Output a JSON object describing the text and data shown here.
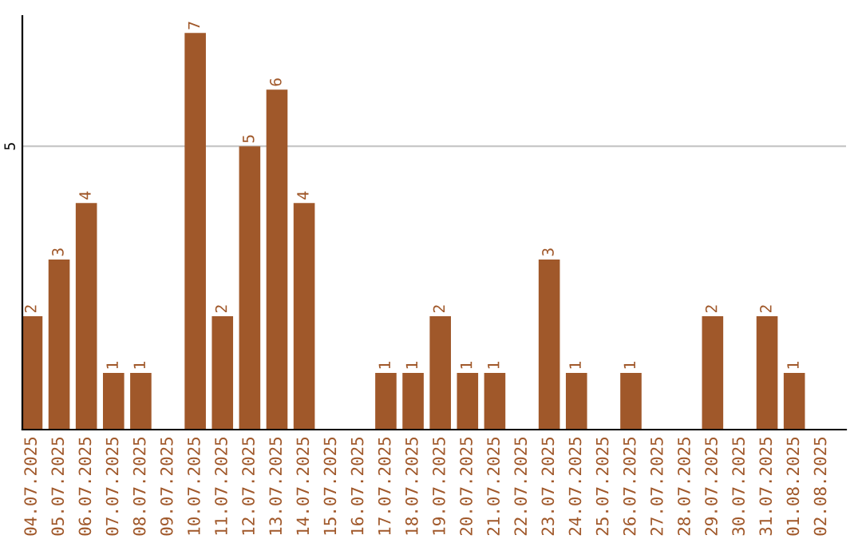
{
  "chart_data": {
    "type": "bar",
    "categories": [
      "04.07.2025",
      "05.07.2025",
      "06.07.2025",
      "07.07.2025",
      "08.07.2025",
      "09.07.2025",
      "10.07.2025",
      "11.07.2025",
      "12.07.2025",
      "13.07.2025",
      "14.07.2025",
      "15.07.2025",
      "16.07.2025",
      "17.07.2025",
      "18.07.2025",
      "19.07.2025",
      "20.07.2025",
      "21.07.2025",
      "22.07.2025",
      "23.07.2025",
      "24.07.2025",
      "25.07.2025",
      "26.07.2025",
      "27.07.2025",
      "28.07.2025",
      "29.07.2025",
      "30.07.2025",
      "31.07.2025",
      "01.08.2025",
      "02.08.2025"
    ],
    "values": [
      2,
      3,
      4,
      1,
      1,
      0,
      7,
      2,
      5,
      6,
      4,
      0,
      0,
      1,
      1,
      2,
      1,
      1,
      0,
      3,
      1,
      0,
      1,
      0,
      0,
      2,
      0,
      2,
      1,
      0
    ],
    "value_labels": [
      "2",
      "3",
      "4",
      "1",
      "1",
      null,
      "7",
      "2",
      "5",
      "6",
      "4",
      null,
      null,
      "1",
      "1",
      "2",
      "1",
      "1",
      null,
      "3",
      "1",
      null,
      "1",
      null,
      null,
      "2",
      null,
      "2",
      "1",
      null
    ],
    "color": "#a0582a",
    "ylim": [
      0,
      7.3
    ],
    "yticks": [
      5
    ],
    "grid": "y"
  }
}
